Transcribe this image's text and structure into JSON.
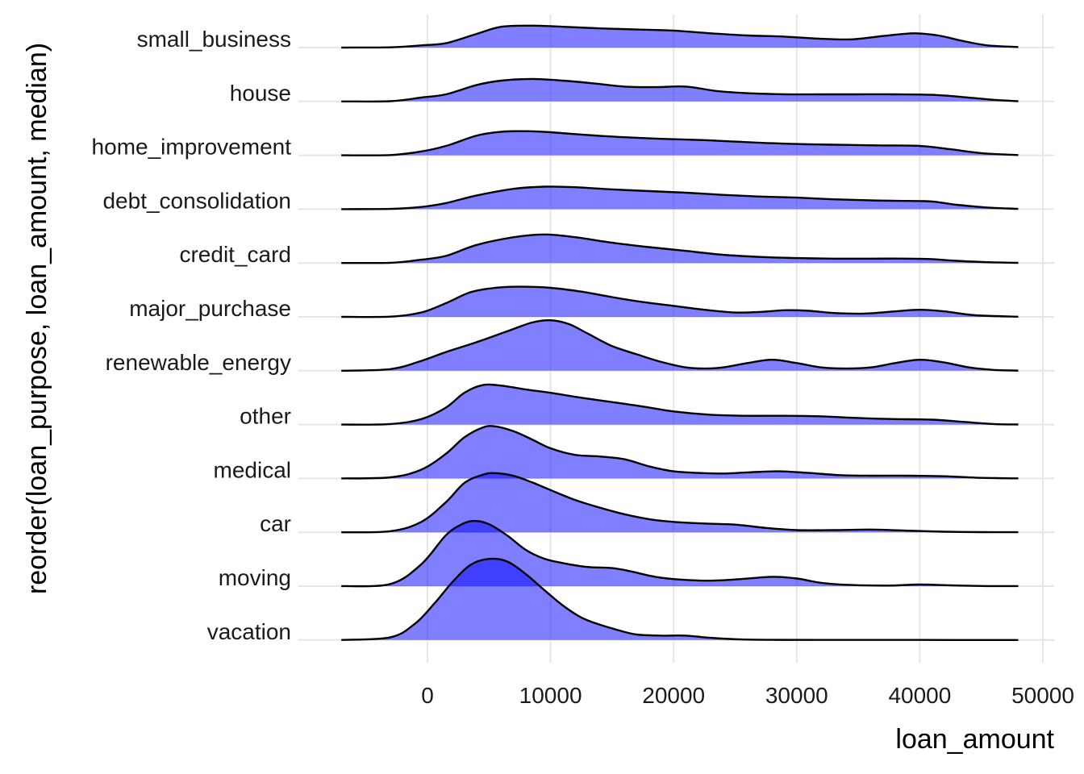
{
  "chart_data": {
    "type": "ridgeline",
    "xlabel": "loan_amount",
    "ylabel": "reorder(loan_purpose, loan_amount, median)",
    "xlim": [
      -7000,
      48000
    ],
    "xticks": [
      0,
      10000,
      20000,
      30000,
      40000,
      50000
    ],
    "x_tick_labels": [
      "0",
      "10000",
      "20000",
      "30000",
      "40000",
      "50000"
    ],
    "fill_color": "#0000FF",
    "line_color": "#000000",
    "grid": true,
    "categories": [
      "small_business",
      "house",
      "home_improvement",
      "debt_consolidation",
      "credit_card",
      "major_purchase",
      "renewable_energy",
      "other",
      "medical",
      "car",
      "moving",
      "vacation"
    ],
    "series": [
      {
        "name": "small_business",
        "points": [
          [
            -7000,
            0
          ],
          [
            -3000,
            0.005
          ],
          [
            -500,
            0.04
          ],
          [
            1500,
            0.08
          ],
          [
            4000,
            0.25
          ],
          [
            6000,
            0.38
          ],
          [
            8500,
            0.4
          ],
          [
            11000,
            0.38
          ],
          [
            14000,
            0.35
          ],
          [
            17000,
            0.33
          ],
          [
            20000,
            0.31
          ],
          [
            23000,
            0.26
          ],
          [
            26000,
            0.22
          ],
          [
            29000,
            0.2
          ],
          [
            32000,
            0.16
          ],
          [
            34500,
            0.15
          ],
          [
            37000,
            0.21
          ],
          [
            39500,
            0.26
          ],
          [
            41500,
            0.22
          ],
          [
            43500,
            0.12
          ],
          [
            45500,
            0.04
          ],
          [
            48000,
            0.01
          ]
        ]
      },
      {
        "name": "house",
        "points": [
          [
            -7000,
            0
          ],
          [
            -3000,
            0.005
          ],
          [
            -500,
            0.07
          ],
          [
            1500,
            0.13
          ],
          [
            4000,
            0.3
          ],
          [
            6000,
            0.38
          ],
          [
            8500,
            0.41
          ],
          [
            11000,
            0.38
          ],
          [
            13500,
            0.33
          ],
          [
            16000,
            0.27
          ],
          [
            18500,
            0.26
          ],
          [
            21000,
            0.27
          ],
          [
            23500,
            0.19
          ],
          [
            26000,
            0.15
          ],
          [
            29000,
            0.13
          ],
          [
            32000,
            0.13
          ],
          [
            35000,
            0.13
          ],
          [
            38000,
            0.13
          ],
          [
            41000,
            0.12
          ],
          [
            43500,
            0.08
          ],
          [
            46000,
            0.03
          ],
          [
            48000,
            0.005
          ]
        ]
      },
      {
        "name": "home_improvement",
        "points": [
          [
            -7000,
            0
          ],
          [
            -3000,
            0.005
          ],
          [
            -500,
            0.07
          ],
          [
            1500,
            0.17
          ],
          [
            4000,
            0.36
          ],
          [
            6000,
            0.43
          ],
          [
            8000,
            0.44
          ],
          [
            10000,
            0.42
          ],
          [
            13000,
            0.37
          ],
          [
            16000,
            0.33
          ],
          [
            19000,
            0.3
          ],
          [
            22000,
            0.28
          ],
          [
            25000,
            0.25
          ],
          [
            28000,
            0.22
          ],
          [
            31000,
            0.2
          ],
          [
            34000,
            0.19
          ],
          [
            37000,
            0.18
          ],
          [
            40000,
            0.17
          ],
          [
            42500,
            0.11
          ],
          [
            45000,
            0.04
          ],
          [
            48000,
            0.005
          ]
        ]
      },
      {
        "name": "debt_consolidation",
        "points": [
          [
            -7000,
            0
          ],
          [
            -3000,
            0.005
          ],
          [
            -500,
            0.04
          ],
          [
            1500,
            0.11
          ],
          [
            4000,
            0.25
          ],
          [
            7000,
            0.37
          ],
          [
            9500,
            0.41
          ],
          [
            12000,
            0.4
          ],
          [
            15000,
            0.36
          ],
          [
            18000,
            0.33
          ],
          [
            21000,
            0.3
          ],
          [
            24000,
            0.26
          ],
          [
            27000,
            0.23
          ],
          [
            30000,
            0.21
          ],
          [
            33000,
            0.18
          ],
          [
            36000,
            0.16
          ],
          [
            39000,
            0.15
          ],
          [
            41000,
            0.14
          ],
          [
            43000,
            0.08
          ],
          [
            45500,
            0.03
          ],
          [
            48000,
            0.005
          ]
        ]
      },
      {
        "name": "credit_card",
        "points": [
          [
            -7000,
            0
          ],
          [
            -3000,
            0.005
          ],
          [
            -500,
            0.06
          ],
          [
            1500,
            0.13
          ],
          [
            4000,
            0.33
          ],
          [
            7000,
            0.47
          ],
          [
            9500,
            0.52
          ],
          [
            12000,
            0.47
          ],
          [
            15000,
            0.37
          ],
          [
            18000,
            0.29
          ],
          [
            21000,
            0.22
          ],
          [
            24000,
            0.15
          ],
          [
            27000,
            0.11
          ],
          [
            30000,
            0.09
          ],
          [
            33000,
            0.08
          ],
          [
            36000,
            0.08
          ],
          [
            39000,
            0.08
          ],
          [
            41000,
            0.07
          ],
          [
            43000,
            0.04
          ],
          [
            45500,
            0.015
          ],
          [
            48000,
            0.003
          ]
        ]
      },
      {
        "name": "major_purchase",
        "points": [
          [
            -7000,
            0
          ],
          [
            -3000,
            0.005
          ],
          [
            -500,
            0.08
          ],
          [
            1500,
            0.25
          ],
          [
            3500,
            0.45
          ],
          [
            5500,
            0.53
          ],
          [
            7500,
            0.55
          ],
          [
            10000,
            0.53
          ],
          [
            12500,
            0.46
          ],
          [
            15000,
            0.36
          ],
          [
            17500,
            0.27
          ],
          [
            20000,
            0.2
          ],
          [
            22500,
            0.13
          ],
          [
            25000,
            0.08
          ],
          [
            27000,
            0.09
          ],
          [
            29000,
            0.12
          ],
          [
            31000,
            0.11
          ],
          [
            33000,
            0.07
          ],
          [
            35500,
            0.06
          ],
          [
            38000,
            0.1
          ],
          [
            40000,
            0.13
          ],
          [
            42000,
            0.1
          ],
          [
            44500,
            0.03
          ],
          [
            48000,
            0.003
          ]
        ]
      },
      {
        "name": "renewable_energy",
        "points": [
          [
            -7000,
            0
          ],
          [
            -3000,
            0.03
          ],
          [
            -500,
            0.18
          ],
          [
            1500,
            0.34
          ],
          [
            4000,
            0.52
          ],
          [
            6500,
            0.72
          ],
          [
            8500,
            0.88
          ],
          [
            10000,
            0.92
          ],
          [
            11500,
            0.85
          ],
          [
            13000,
            0.68
          ],
          [
            15000,
            0.45
          ],
          [
            17000,
            0.3
          ],
          [
            19000,
            0.16
          ],
          [
            21000,
            0.06
          ],
          [
            22500,
            0.04
          ],
          [
            24000,
            0.06
          ],
          [
            26000,
            0.14
          ],
          [
            28000,
            0.2
          ],
          [
            30000,
            0.14
          ],
          [
            32000,
            0.06
          ],
          [
            34000,
            0.04
          ],
          [
            36000,
            0.06
          ],
          [
            38000,
            0.14
          ],
          [
            40000,
            0.2
          ],
          [
            42000,
            0.15
          ],
          [
            44000,
            0.06
          ],
          [
            46000,
            0.015
          ],
          [
            48000,
            0.002
          ]
        ]
      },
      {
        "name": "other",
        "points": [
          [
            -7000,
            0
          ],
          [
            -3000,
            0.01
          ],
          [
            -500,
            0.1
          ],
          [
            1500,
            0.31
          ],
          [
            3000,
            0.58
          ],
          [
            4500,
            0.72
          ],
          [
            6000,
            0.71
          ],
          [
            8000,
            0.64
          ],
          [
            10000,
            0.58
          ],
          [
            12500,
            0.49
          ],
          [
            15000,
            0.41
          ],
          [
            17500,
            0.33
          ],
          [
            20000,
            0.24
          ],
          [
            23000,
            0.18
          ],
          [
            26000,
            0.16
          ],
          [
            29000,
            0.16
          ],
          [
            32000,
            0.15
          ],
          [
            35000,
            0.12
          ],
          [
            38000,
            0.1
          ],
          [
            41000,
            0.09
          ],
          [
            43500,
            0.05
          ],
          [
            46000,
            0.01
          ],
          [
            48000,
            0.001
          ]
        ]
      },
      {
        "name": "medical",
        "points": [
          [
            -7000,
            0
          ],
          [
            -3000,
            0.02
          ],
          [
            -500,
            0.16
          ],
          [
            1500,
            0.45
          ],
          [
            3000,
            0.75
          ],
          [
            4500,
            0.93
          ],
          [
            5500,
            0.95
          ],
          [
            7000,
            0.86
          ],
          [
            8500,
            0.71
          ],
          [
            10000,
            0.55
          ],
          [
            12000,
            0.43
          ],
          [
            14000,
            0.4
          ],
          [
            16000,
            0.35
          ],
          [
            18000,
            0.22
          ],
          [
            20000,
            0.13
          ],
          [
            22000,
            0.1
          ],
          [
            24000,
            0.09
          ],
          [
            26000,
            0.11
          ],
          [
            28500,
            0.13
          ],
          [
            31000,
            0.1
          ],
          [
            33500,
            0.06
          ],
          [
            36000,
            0.05
          ],
          [
            39000,
            0.05
          ],
          [
            42000,
            0.04
          ],
          [
            44500,
            0.015
          ],
          [
            47000,
            0.003
          ],
          [
            48000,
            0.001
          ]
        ]
      },
      {
        "name": "car",
        "points": [
          [
            -7000,
            0
          ],
          [
            -3000,
            0.02
          ],
          [
            -500,
            0.19
          ],
          [
            1500,
            0.55
          ],
          [
            3000,
            0.9
          ],
          [
            4500,
            1.05
          ],
          [
            5500,
            1.08
          ],
          [
            7000,
            1.03
          ],
          [
            8500,
            0.91
          ],
          [
            10000,
            0.77
          ],
          [
            12000,
            0.59
          ],
          [
            14000,
            0.45
          ],
          [
            16000,
            0.33
          ],
          [
            18000,
            0.24
          ],
          [
            20000,
            0.19
          ],
          [
            22500,
            0.16
          ],
          [
            25000,
            0.14
          ],
          [
            27500,
            0.08
          ],
          [
            30000,
            0.04
          ],
          [
            33000,
            0.04
          ],
          [
            36000,
            0.05
          ],
          [
            39000,
            0.03
          ],
          [
            42000,
            0.01
          ],
          [
            45000,
            0.003
          ],
          [
            48000,
            0.001
          ]
        ]
      },
      {
        "name": "moving",
        "points": [
          [
            -7000,
            0
          ],
          [
            -3000,
            0.04
          ],
          [
            -500,
            0.4
          ],
          [
            1500,
            0.93
          ],
          [
            2800,
            1.13
          ],
          [
            3800,
            1.19
          ],
          [
            5000,
            1.13
          ],
          [
            6500,
            0.92
          ],
          [
            8000,
            0.66
          ],
          [
            9500,
            0.5
          ],
          [
            11000,
            0.42
          ],
          [
            13000,
            0.35
          ],
          [
            15000,
            0.33
          ],
          [
            16500,
            0.27
          ],
          [
            18500,
            0.17
          ],
          [
            20500,
            0.12
          ],
          [
            23000,
            0.1
          ],
          [
            25500,
            0.13
          ],
          [
            28000,
            0.17
          ],
          [
            30000,
            0.14
          ],
          [
            32000,
            0.06
          ],
          [
            34500,
            0.02
          ],
          [
            37500,
            0.01
          ],
          [
            40000,
            0.03
          ],
          [
            42500,
            0.015
          ],
          [
            45000,
            0.003
          ],
          [
            48000,
            0.001
          ]
        ]
      },
      {
        "name": "vacation",
        "points": [
          [
            -7000,
            0
          ],
          [
            -3000,
            0.05
          ],
          [
            -1000,
            0.3
          ],
          [
            500,
            0.65
          ],
          [
            2000,
            1.05
          ],
          [
            3500,
            1.37
          ],
          [
            5000,
            1.48
          ],
          [
            6500,
            1.43
          ],
          [
            8000,
            1.2
          ],
          [
            9500,
            0.91
          ],
          [
            11000,
            0.63
          ],
          [
            12500,
            0.41
          ],
          [
            14000,
            0.28
          ],
          [
            15500,
            0.18
          ],
          [
            17000,
            0.1
          ],
          [
            19000,
            0.08
          ],
          [
            21000,
            0.08
          ],
          [
            23000,
            0.04
          ],
          [
            25500,
            0.01
          ],
          [
            28000,
            0.003
          ],
          [
            32000,
            0.002
          ],
          [
            40000,
            0.001
          ],
          [
            48000,
            0
          ]
        ]
      }
    ]
  }
}
